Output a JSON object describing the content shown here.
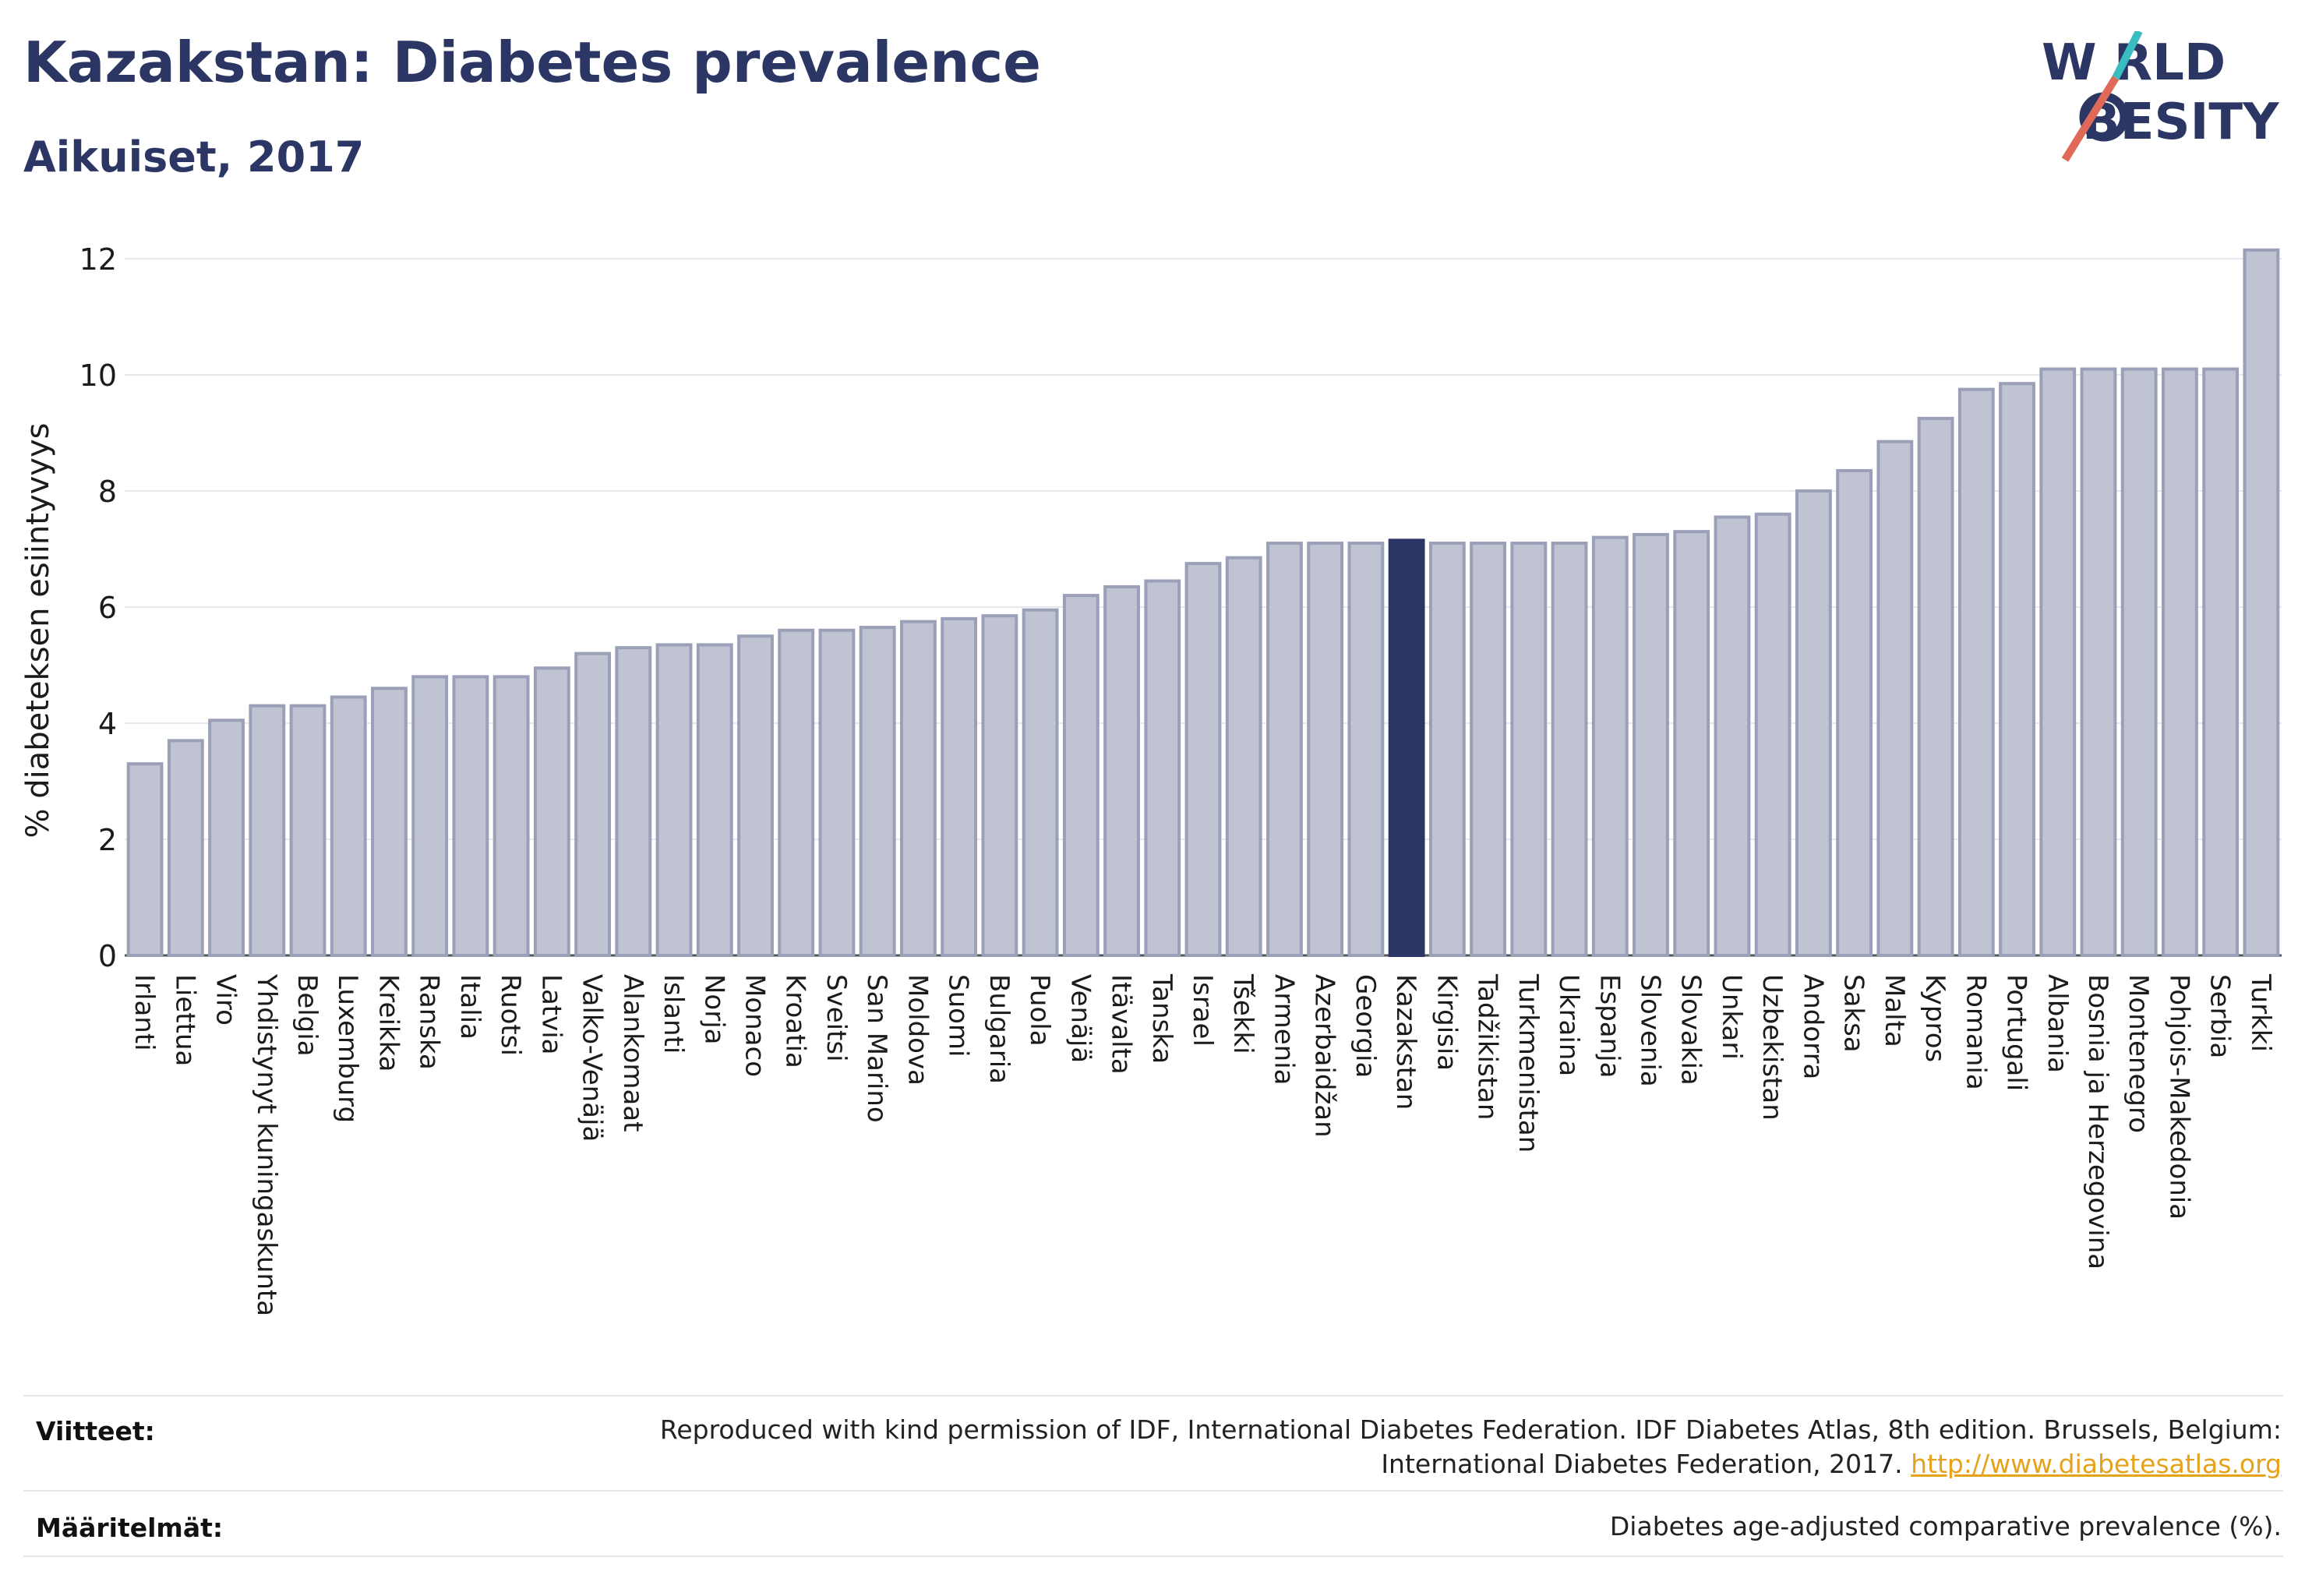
{
  "header": {
    "title": "Kazakstan: Diabetes prevalence",
    "subtitle": "Aikuiset, 2017",
    "logo_top": "W RLD",
    "logo_bottom": "BESITY"
  },
  "colors": {
    "bar": "#bfc3d2",
    "bar_stroke": "#9aa0b8",
    "highlight": "#2b3664",
    "grid": "#e8e8ec",
    "title": "#2b3664"
  },
  "chart_data": {
    "type": "bar",
    "ylabel": "% diabeteksen esiintyvyys",
    "ylim": [
      0,
      12.5
    ],
    "yticks": [
      0,
      2,
      4,
      6,
      8,
      10,
      12
    ],
    "highlight": "Kazakstan",
    "categories": [
      "Irlanti",
      "Liettua",
      "Viro",
      "Yhdistynyt kuningaskunta",
      "Belgia",
      "Luxemburg",
      "Kreikka",
      "Ranska",
      "Italia",
      "Ruotsi",
      "Latvia",
      "Valko-Venäjä",
      "Alankomaat",
      "Islanti",
      "Norja",
      "Monaco",
      "Kroatia",
      "Sveitsi",
      "San Marino",
      "Moldova",
      "Suomi",
      "Bulgaria",
      "Puola",
      "Venäjä",
      "Itävalta",
      "Tanska",
      "Israel",
      "Tšekki",
      "Armenia",
      "Azerbaidžan",
      "Georgia",
      "Kazakstan",
      "Kirgisia",
      "Tadžikistan",
      "Turkmenistan",
      "Ukraina",
      "Espanja",
      "Slovenia",
      "Slovakia",
      "Unkari",
      "Uzbekistan",
      "Andorra",
      "Saksa",
      "Malta",
      "Kypros",
      "Romania",
      "Portugali",
      "Albania",
      "Bosnia ja Herzegovina",
      "Montenegro",
      "Pohjois-Makedonia",
      "Serbia",
      "Turkki"
    ],
    "values": [
      3.3,
      3.7,
      4.05,
      4.3,
      4.3,
      4.45,
      4.6,
      4.8,
      4.8,
      4.8,
      4.95,
      5.2,
      5.3,
      5.35,
      5.35,
      5.5,
      5.6,
      5.6,
      5.65,
      5.75,
      5.8,
      5.85,
      5.95,
      6.2,
      6.35,
      6.45,
      6.75,
      6.85,
      7.1,
      7.1,
      7.1,
      7.15,
      7.1,
      7.1,
      7.1,
      7.1,
      7.2,
      7.25,
      7.3,
      7.55,
      7.6,
      8.0,
      8.35,
      8.85,
      9.25,
      9.75,
      9.85,
      10.1,
      10.1,
      10.1,
      10.1,
      10.1,
      12.15
    ]
  },
  "footer": {
    "refs_label": "Viitteet:",
    "refs_line1": "Reproduced with kind permission of IDF, International Diabetes Federation. IDF Diabetes Atlas, 8th edition. Brussels, Belgium:",
    "refs_line2": "International Diabetes Federation, 2017.",
    "refs_link": "http://www.diabetesatlas.org",
    "defs_label": "Määritelmät:",
    "defs_text": "Diabetes age-adjusted comparative prevalence (%)."
  }
}
